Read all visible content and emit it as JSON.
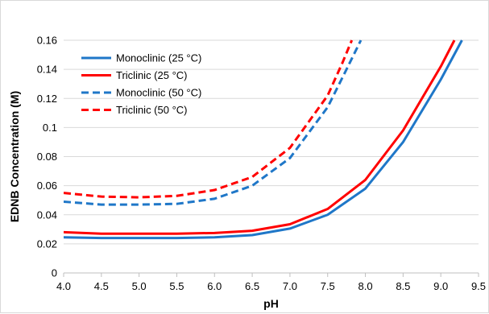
{
  "chart_data": {
    "type": "line",
    "title": "",
    "xlabel": "pH",
    "ylabel": "EDNB Concentration (M)",
    "xlim": [
      4.0,
      9.5
    ],
    "ylim": [
      0,
      0.16
    ],
    "x_ticks": [
      "4.0",
      "4.5",
      "5.0",
      "5.5",
      "6.0",
      "6.5",
      "7.0",
      "7.5",
      "8.0",
      "8.5",
      "9.0",
      "9.5"
    ],
    "y_ticks": [
      "0",
      "0.02",
      "0.04",
      "0.06",
      "0.08",
      "0.1",
      "0.12",
      "0.14",
      "0.16"
    ],
    "grid": "horizontal",
    "legend_position": "top-left",
    "series": [
      {
        "name": "Monoclinic (25 °C)",
        "color": "#1f77c8",
        "dash": "solid",
        "x": [
          4.0,
          4.5,
          5.0,
          5.5,
          6.0,
          6.5,
          7.0,
          7.5,
          8.0,
          8.5,
          9.0,
          9.28
        ],
        "y": [
          0.0245,
          0.024,
          0.024,
          0.024,
          0.0245,
          0.026,
          0.0305,
          0.04,
          0.058,
          0.09,
          0.133,
          0.16
        ]
      },
      {
        "name": "Triclinic (25 °C)",
        "color": "#ff0000",
        "dash": "solid",
        "x": [
          4.0,
          4.5,
          5.0,
          5.5,
          6.0,
          6.5,
          7.0,
          7.5,
          8.0,
          8.5,
          9.0,
          9.18
        ],
        "y": [
          0.028,
          0.027,
          0.027,
          0.027,
          0.0275,
          0.029,
          0.0335,
          0.044,
          0.064,
          0.098,
          0.142,
          0.16
        ]
      },
      {
        "name": "Monoclinic (50 °C)",
        "color": "#1f77c8",
        "dash": "dashed",
        "x": [
          4.0,
          4.5,
          5.0,
          5.5,
          6.0,
          6.5,
          7.0,
          7.5,
          7.75,
          7.94
        ],
        "y": [
          0.049,
          0.047,
          0.047,
          0.0475,
          0.051,
          0.06,
          0.079,
          0.114,
          0.14,
          0.16
        ]
      },
      {
        "name": "Triclinic (50 °C)",
        "color": "#ff0000",
        "dash": "dashed",
        "x": [
          4.0,
          4.5,
          5.0,
          5.5,
          6.0,
          6.5,
          7.0,
          7.5,
          7.7,
          7.82
        ],
        "y": [
          0.055,
          0.0525,
          0.052,
          0.053,
          0.057,
          0.066,
          0.086,
          0.122,
          0.145,
          0.16
        ]
      }
    ]
  }
}
